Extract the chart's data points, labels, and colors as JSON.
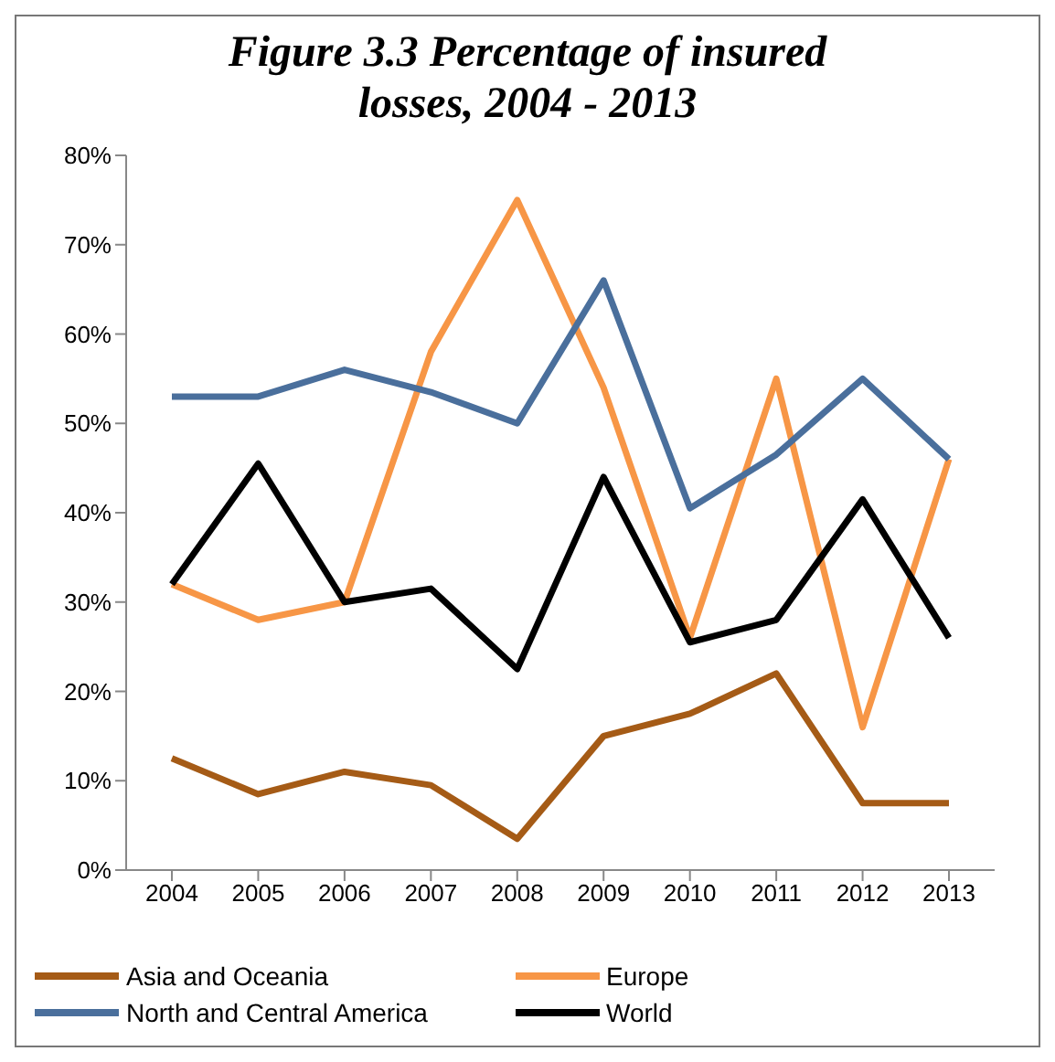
{
  "chart_data": {
    "type": "line",
    "title": "Figure 3.3 Percentage of insured losses, 2004 - 2013",
    "categories": [
      "2004",
      "2005",
      "2006",
      "2007",
      "2008",
      "2009",
      "2010",
      "2011",
      "2012",
      "2013"
    ],
    "series": [
      {
        "name": "Asia and Oceania",
        "color": "#a55b16",
        "values": [
          12.5,
          8.5,
          11,
          9.5,
          3.5,
          15,
          17.5,
          22,
          7.5,
          7.5
        ]
      },
      {
        "name": "Europe",
        "color": "#f79646",
        "values": [
          32,
          28,
          30,
          58,
          75,
          54,
          26,
          55,
          16,
          46
        ]
      },
      {
        "name": "North and Central America",
        "color": "#4a6f9c",
        "values": [
          53,
          53,
          56,
          53.5,
          50,
          66,
          40.5,
          46.5,
          55,
          46
        ]
      },
      {
        "name": "World",
        "color": "#000000",
        "values": [
          32,
          45.5,
          30,
          31.5,
          22.5,
          44,
          25.5,
          28,
          41.5,
          26
        ]
      }
    ],
    "ylim": [
      0,
      80
    ],
    "yticks": [
      {
        "value": 0,
        "label": "0%"
      },
      {
        "value": 10,
        "label": "10%"
      },
      {
        "value": 20,
        "label": "20%"
      },
      {
        "value": 30,
        "label": "30%"
      },
      {
        "value": 40,
        "label": "40%"
      },
      {
        "value": 50,
        "label": "50%"
      },
      {
        "value": 60,
        "label": "60%"
      },
      {
        "value": 70,
        "label": "70%"
      },
      {
        "value": 80,
        "label": "80%"
      }
    ],
    "legend": "bottom",
    "marker": "none",
    "line_style": "solid"
  }
}
